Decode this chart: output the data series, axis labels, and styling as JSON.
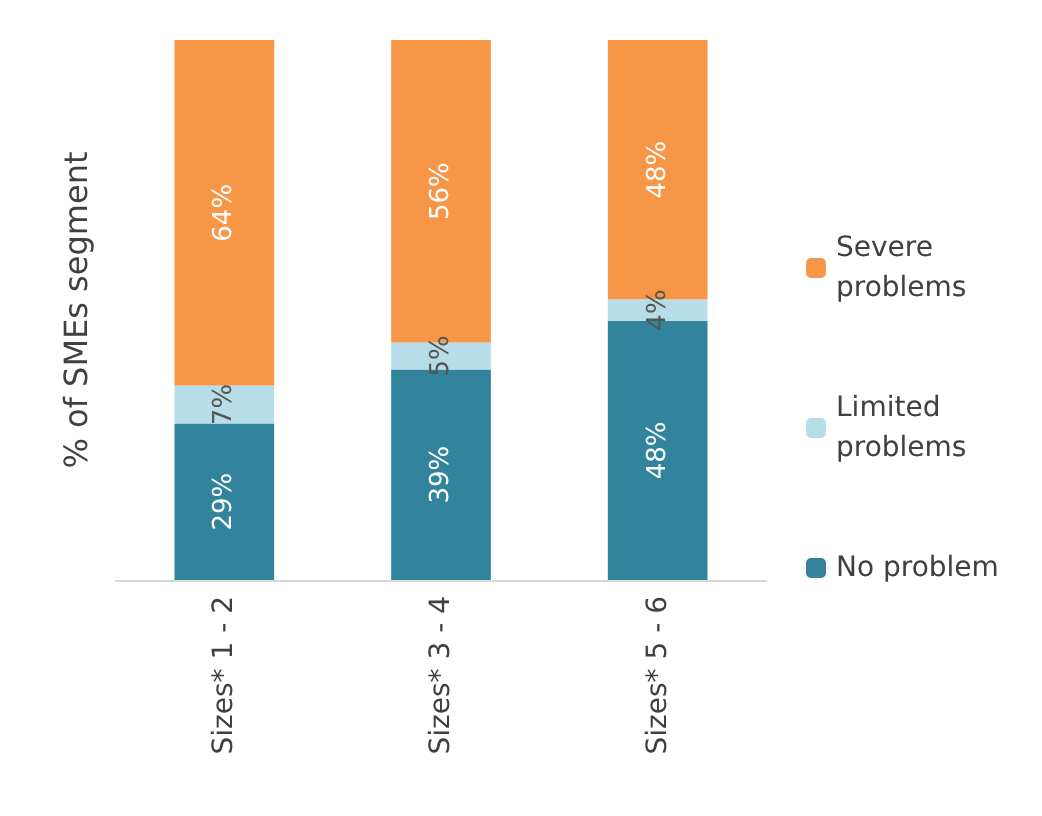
{
  "chart_data": {
    "type": "bar",
    "stacked": true,
    "ylabel": "% of SMEs segment",
    "categories": [
      "Sizes* 1 - 2",
      "Sizes* 3 - 4",
      "Sizes* 5 - 6"
    ],
    "series": [
      {
        "name": "No problem",
        "color": "#31849b",
        "values": [
          29,
          39,
          48
        ],
        "value_labels": [
          "29%",
          "39%",
          "48%"
        ]
      },
      {
        "name": "Limited problems",
        "color": "#b7dee8",
        "values": [
          7,
          5,
          4
        ],
        "value_labels": [
          "7%",
          "5%",
          "4%"
        ]
      },
      {
        "name": "Severe problems",
        "color": "#f79646",
        "values": [
          64,
          56,
          48
        ],
        "value_labels": [
          "64%",
          "56%",
          "48%"
        ]
      }
    ],
    "legend": "right",
    "grid": false,
    "tick_labels": "x"
  }
}
